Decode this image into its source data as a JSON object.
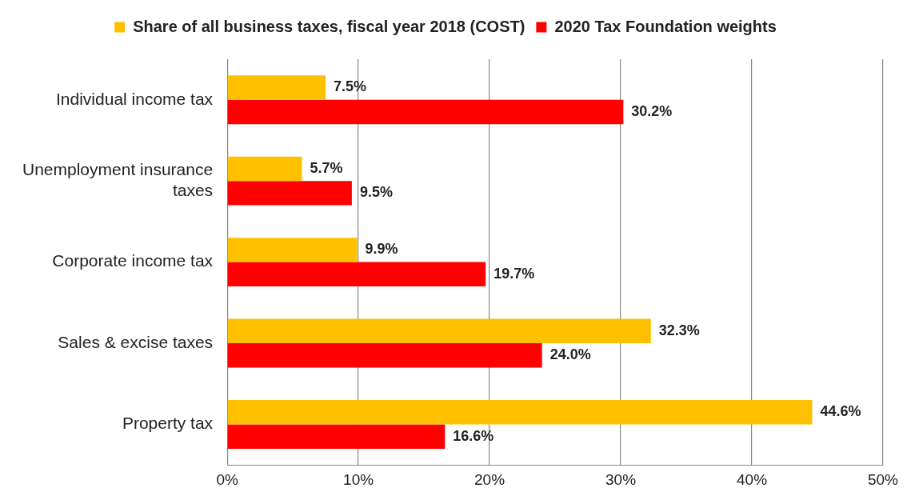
{
  "chart_data": {
    "type": "bar",
    "orientation": "horizontal",
    "categories": [
      "Individual income tax",
      "Unemployment insurance taxes",
      "Corporate income tax",
      "Sales & excise taxes",
      "Property tax"
    ],
    "series": [
      {
        "name": "Share of all business taxes, fiscal year 2018 (COST)",
        "color": "#ffc000",
        "values": [
          7.5,
          5.7,
          9.9,
          32.3,
          44.6
        ],
        "value_labels": [
          "7.5%",
          "5.7%",
          "9.9%",
          "32.3%",
          "44.6%"
        ]
      },
      {
        "name": "2020 Tax Foundation weights",
        "color": "#ff0000",
        "values": [
          30.2,
          9.5,
          19.7,
          24.0,
          16.6
        ],
        "value_labels": [
          "30.2%",
          "9.5%",
          "19.7%",
          "24.0%",
          "16.6%"
        ]
      }
    ],
    "xlim": [
      0,
      50
    ],
    "xticks": [
      {
        "value": 0,
        "label": "0%"
      },
      {
        "value": 10,
        "label": "10%"
      },
      {
        "value": 20,
        "label": "20%"
      },
      {
        "value": 30,
        "label": "30%"
      },
      {
        "value": 40,
        "label": "40%"
      },
      {
        "value": 50,
        "label": "50%"
      }
    ],
    "grid": "x",
    "legend": "top"
  }
}
